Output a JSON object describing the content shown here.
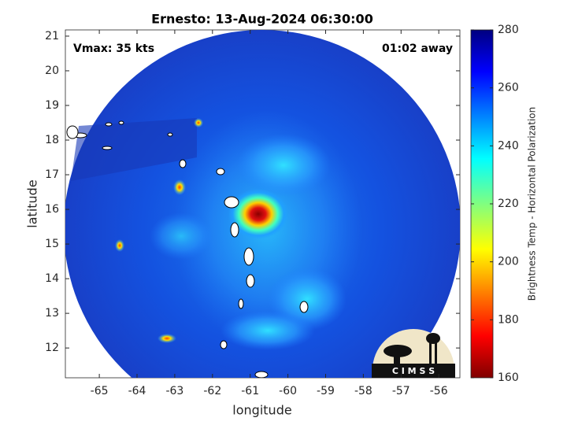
{
  "chart_data": {
    "type": "map",
    "title": "Ernesto: 13-Aug-2024 06:30:00",
    "annotations": {
      "left": "Vmax: 35 kts",
      "right": "01:02 away"
    },
    "xlabel": "longitude",
    "ylabel": "latitude",
    "xlim": [
      -65.9,
      -55.44
    ],
    "xticks": [
      -65,
      -64,
      -63,
      -62,
      -61,
      -60,
      -59,
      -58,
      -57,
      -56
    ],
    "ylim": [
      11.14,
      21.18
    ],
    "yticks": [
      12,
      13,
      14,
      15,
      16,
      17,
      18,
      19,
      20,
      21
    ],
    "colorbar": {
      "label": "Brightness Temp - Horizontal Polarization",
      "lim": [
        160,
        280
      ],
      "ticks": [
        160,
        180,
        200,
        220,
        240,
        260,
        280
      ]
    },
    "logo": "C I M S S"
  }
}
